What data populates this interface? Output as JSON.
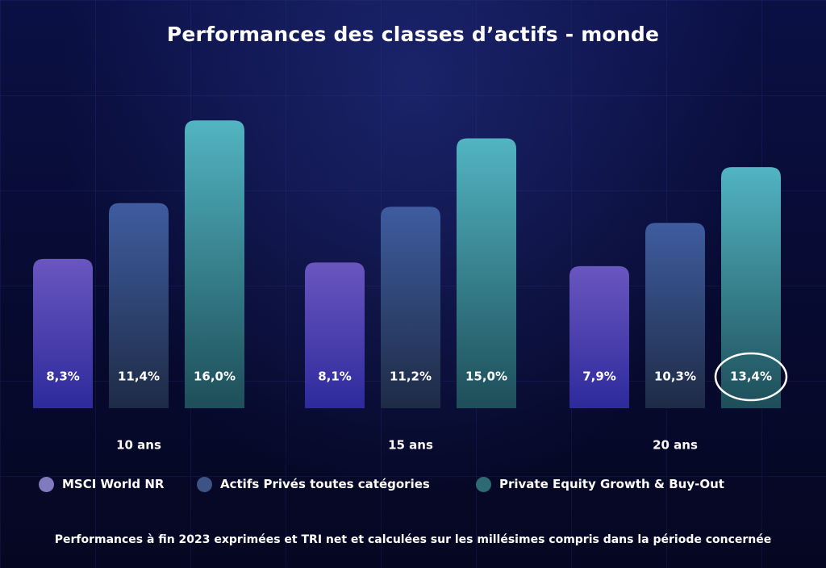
{
  "chart_data": {
    "type": "bar",
    "title": "Performances des classes d’actifs - monde",
    "categories": [
      "10 ans",
      "15 ans",
      "20 ans"
    ],
    "series": [
      {
        "name": "MSCI World NR",
        "values": [
          8.3,
          8.1,
          7.9
        ],
        "labels": [
          "8,3%",
          "8,1%",
          "7,9%"
        ]
      },
      {
        "name": "Actifs Privés toutes catégories",
        "values": [
          11.4,
          11.2,
          10.3
        ],
        "labels": [
          "11,4%",
          "11,2%",
          "10,3%"
        ]
      },
      {
        "name": "Private Equity Growth & Buy-Out",
        "values": [
          16.0,
          15.0,
          13.4
        ],
        "labels": [
          "16,0%",
          "15,0%",
          "13,4%"
        ]
      }
    ],
    "colors": {
      "MSCI World NR": {
        "top": "#6a56bf",
        "bottom": "#2d2a9c"
      },
      "Actifs Privés toutes catégories": {
        "top": "#3e5c9f",
        "bottom": "#1e2b45"
      },
      "Private Equity Growth & Buy-Out": {
        "top": "#52b4c2",
        "bottom": "#1d4e59"
      }
    },
    "legend_dot_colors": [
      "#7f7bbe",
      "#3d5386",
      "#2d6a74"
    ],
    "highlighted": {
      "series": 2,
      "category": 2
    },
    "legend_position": "bottom",
    "grid": false
  },
  "footnote": "Performances à fin 2023 exprimées et TRI net et calculées sur les millésimes compris dans la période concernée"
}
